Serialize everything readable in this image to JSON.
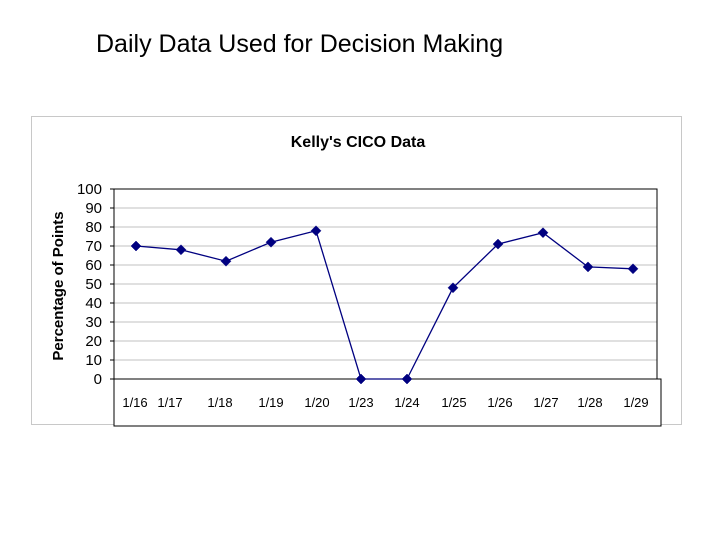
{
  "slide": {
    "title": "Daily Data Used for Decision Making"
  },
  "colors": {
    "series": "#000080",
    "grid": "#c0c0c0",
    "axis": "#000000"
  },
  "chart_data": {
    "type": "line",
    "title": "Kelly's CICO Data",
    "xlabel": "",
    "ylabel": "Percentage of Points",
    "categories": [
      "1/16",
      "1/17",
      "1/18",
      "1/19",
      "1/20",
      "1/23",
      "1/24",
      "1/25",
      "1/26",
      "1/27",
      "1/28",
      "1/29"
    ],
    "series": [
      {
        "values": [
          70,
          68,
          62,
          72,
          78,
          0,
          0,
          48,
          71,
          77,
          59,
          58
        ]
      }
    ],
    "ylim": [
      0,
      100
    ],
    "yticks": [
      0,
      10,
      20,
      30,
      40,
      50,
      60,
      70,
      80,
      90,
      100
    ],
    "grid": true,
    "marker": "diamond",
    "legend": "none"
  }
}
